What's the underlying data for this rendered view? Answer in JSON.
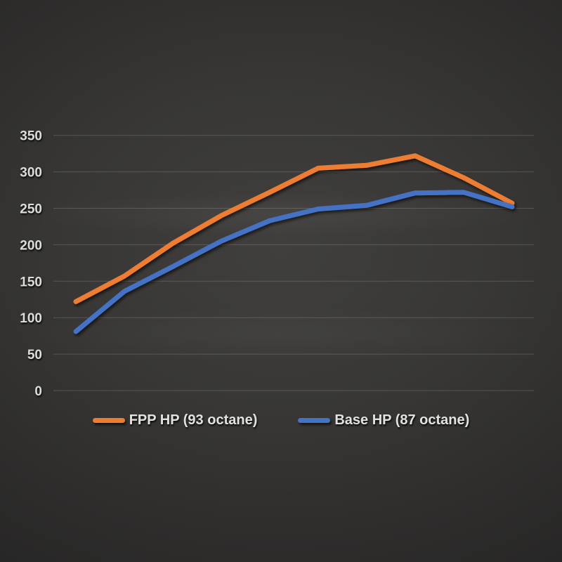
{
  "chart_data": {
    "type": "line",
    "title": "",
    "x": [
      1,
      2,
      3,
      4,
      5,
      6,
      7,
      8,
      9,
      10
    ],
    "x_axis_labels_visible": false,
    "y_ticks": [
      0,
      50,
      100,
      150,
      200,
      250,
      300,
      350
    ],
    "y_range": [
      0,
      370
    ],
    "grid": true,
    "legend_position": "bottom",
    "series": [
      {
        "name": "FPP HP (93 octane)",
        "color": "#ED7D31",
        "values": [
          122,
          157,
          202,
          240,
          272,
          305,
          309,
          322,
          292,
          257
        ]
      },
      {
        "name": "Base HP (87 octane)",
        "color": "#4472C4",
        "values": [
          81,
          136,
          170,
          205,
          233,
          249,
          254,
          271,
          272,
          252
        ]
      }
    ]
  },
  "colors": {
    "background_center": "#403f3d",
    "background_edge": "#262525",
    "gridline": "rgba(205,205,200,0.22)",
    "tick_label": "#dcdcda",
    "legend_text": "#e2e2df"
  }
}
